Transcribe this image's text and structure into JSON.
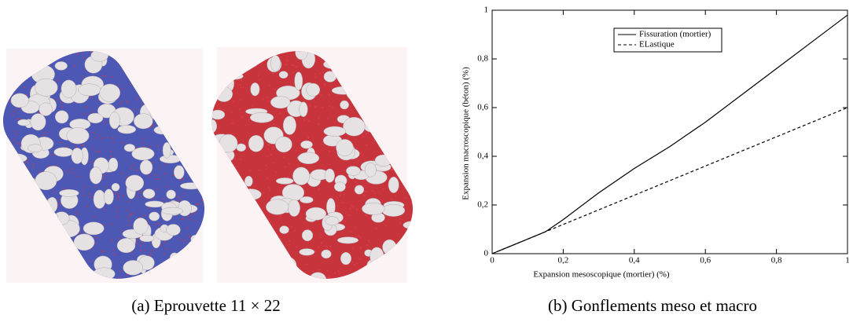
{
  "figure_a": {
    "caption": "(a) Eprouvette 11 × 22"
  },
  "chart_data": {
    "type": "line",
    "caption": "(b) Gonflements meso et macro",
    "xlabel": "Expansion mesoscopique (mortier) (%)",
    "ylabel": "Expansion macroscopique (béton) (%)",
    "x": [
      0,
      0.1,
      0.15,
      0.2,
      0.3,
      0.4,
      0.5,
      0.6,
      0.7,
      0.8,
      0.9,
      1
    ],
    "series": [
      {
        "name": "Fissuration (mortier)",
        "color": "#000000",
        "dash": "solid",
        "values": [
          0,
          0.06,
          0.09,
          0.14,
          0.25,
          0.35,
          0.44,
          0.54,
          0.65,
          0.76,
          0.87,
          0.98
        ]
      },
      {
        "name": "ELastique",
        "color": "#000000",
        "dash": "dashed",
        "values": [
          0,
          0.06,
          0.09,
          0.12,
          0.18,
          0.24,
          0.3,
          0.36,
          0.42,
          0.48,
          0.54,
          0.6
        ]
      }
    ],
    "xlim": [
      0,
      1
    ],
    "ylim": [
      0,
      1
    ],
    "xticks": [
      0,
      {
        "value": 0.2,
        "label": "0,2"
      },
      {
        "value": 0.4,
        "label": "0,4"
      },
      {
        "value": 0.6,
        "label": "0,6"
      },
      {
        "value": 0.8,
        "label": "0,8"
      },
      1
    ],
    "yticks": [
      0,
      {
        "value": 0.2,
        "label": "0,2"
      },
      {
        "value": 0.4,
        "label": "0,4"
      },
      {
        "value": 0.6,
        "label": "0,6"
      },
      {
        "value": 0.8,
        "label": "0,8"
      },
      1
    ],
    "grid": false,
    "legend": "top"
  }
}
